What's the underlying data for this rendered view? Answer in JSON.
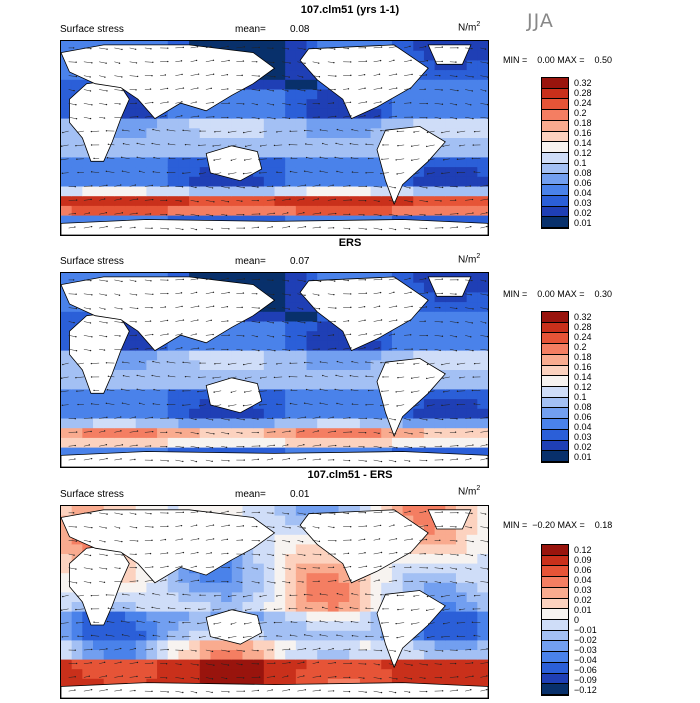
{
  "season_label": "JJA",
  "colorbar_palette": [
    "#08306b",
    "#1f3fb5",
    "#2b5fd8",
    "#4a82ea",
    "#729ff0",
    "#a3c0f4",
    "#cfddf8",
    "#f7f3f0",
    "#fcd2bf",
    "#f9ab8f",
    "#f47e62",
    "#e65437",
    "#c9301b",
    "#99140d"
  ],
  "panels": [
    {
      "title": "107.clm51 (yrs 1-1)",
      "left_label": "Surface stress",
      "mean_label": "mean=",
      "mean_value": "0.08",
      "units_base": "N/m",
      "units_exp": "2",
      "minmax_text": "MIN =    0.00 MAX =    0.50",
      "colorbar_labels": [
        "0.32",
        "0.28",
        "0.24",
        "0.2",
        "0.18",
        "0.16",
        "0.14",
        "0.12",
        "0.1",
        "0.08",
        "0.06",
        "0.04",
        "0.03",
        "0.02",
        "0.01"
      ]
    },
    {
      "title": "ERS",
      "left_label": "Surface stress",
      "mean_label": "mean=",
      "mean_value": "0.07",
      "units_base": "N/m",
      "units_exp": "2",
      "minmax_text": "MIN =    0.00 MAX =    0.30",
      "colorbar_labels": [
        "0.32",
        "0.28",
        "0.24",
        "0.2",
        "0.18",
        "0.16",
        "0.14",
        "0.12",
        "0.1",
        "0.08",
        "0.06",
        "0.04",
        "0.03",
        "0.02",
        "0.01"
      ]
    },
    {
      "title": "107.clm51 - ERS",
      "left_label": "Surface stress",
      "mean_label": "mean=",
      "mean_value": "0.01",
      "units_base": "N/m",
      "units_exp": "2",
      "minmax_text": "MIN =  −0.20 MAX =    0.18",
      "colorbar_labels": [
        "0.12",
        "0.09",
        "0.06",
        "0.04",
        "0.03",
        "0.02",
        "0.01",
        "0",
        "−0.01",
        "−0.02",
        "−0.03",
        "−0.04",
        "−0.06",
        "−0.09",
        "−0.12"
      ]
    }
  ],
  "chart_data": {
    "type": "heatmap",
    "description_of_fields": "global maps of JJA surface wind stress magnitude with vector arrows",
    "panels": [
      {
        "title": "107.clm51 (yrs 1-1)",
        "variable": "Surface stress",
        "mean": 0.08,
        "min": 0.0,
        "max": 0.5,
        "units": "N/m2",
        "contour_levels": [
          0.01,
          0.02,
          0.03,
          0.04,
          0.06,
          0.08,
          0.1,
          0.12,
          0.14,
          0.16,
          0.18,
          0.2,
          0.24,
          0.28,
          0.32
        ]
      },
      {
        "title": "ERS",
        "variable": "Surface stress",
        "mean": 0.07,
        "min": 0.0,
        "max": 0.3,
        "units": "N/m2",
        "contour_levels": [
          0.01,
          0.02,
          0.03,
          0.04,
          0.06,
          0.08,
          0.1,
          0.12,
          0.14,
          0.16,
          0.18,
          0.2,
          0.24,
          0.28,
          0.32
        ]
      },
      {
        "title": "107.clm51 - ERS",
        "variable": "Surface stress",
        "mean": 0.01,
        "min": -0.2,
        "max": 0.18,
        "units": "N/m2",
        "contour_levels": [
          -0.12,
          -0.09,
          -0.06,
          -0.04,
          -0.03,
          -0.02,
          -0.01,
          0,
          0.01,
          0.02,
          0.03,
          0.04,
          0.06,
          0.09,
          0.12
        ]
      }
    ]
  }
}
